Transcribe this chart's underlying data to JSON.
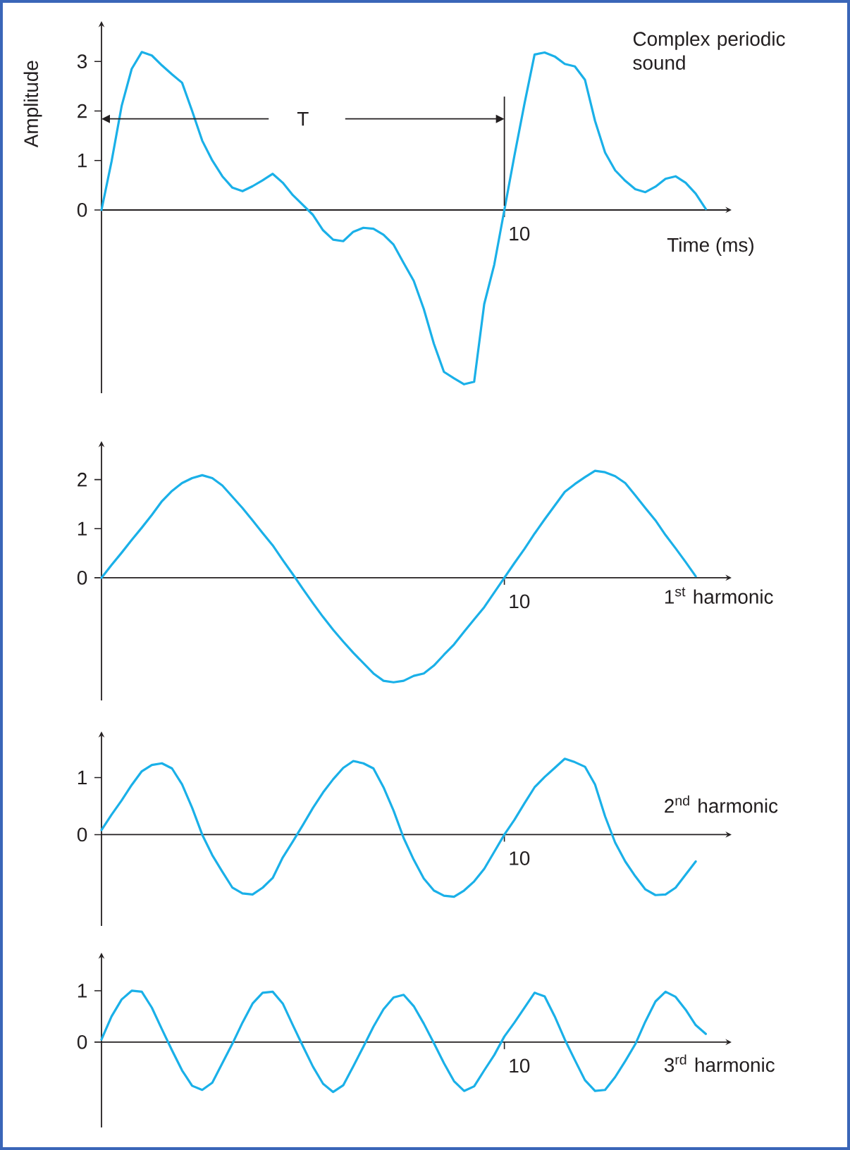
{
  "chart_data": [
    {
      "type": "line",
      "title": "Complex periodic sound",
      "xlabel": "Time (ms)",
      "ylabel": "Amplitude",
      "ylim": [
        -3.7,
        3.7
      ],
      "yticks": [
        0,
        1,
        2,
        3
      ],
      "annotations": [
        "10",
        "T"
      ],
      "categories": [
        null,
        null,
        null,
        null,
        null,
        null,
        null,
        null,
        null,
        null,
        null,
        null,
        null,
        null,
        null,
        null,
        null,
        null,
        null,
        null,
        null,
        null,
        null,
        null,
        null,
        null,
        null,
        null,
        null,
        null,
        null,
        null,
        null,
        null,
        null,
        null,
        null,
        null,
        null,
        null,
        null,
        null,
        null,
        null,
        null,
        null,
        null,
        null,
        null,
        null,
        null,
        null,
        null,
        null,
        null,
        null,
        null,
        null,
        null,
        null,
        null
      ],
      "series": [
        {
          "color": "#1ab0e8",
          "values": [
            0,
            0.98,
            2.1,
            2.85,
            3.19,
            3.12,
            2.92,
            2.74,
            2.57,
            2.0,
            1.4,
            1.0,
            0.68,
            0.45,
            0.38,
            0.48,
            0.6,
            0.73,
            0.55,
            0.3,
            0.1,
            -0.1,
            -0.41,
            -0.6,
            -0.63,
            -0.44,
            -0.36,
            -0.38,
            -0.5,
            -0.7,
            -1.07,
            -1.43,
            -2.0,
            -2.7,
            -3.27,
            -3.4,
            -3.52,
            -3.47,
            -1.9,
            -1.1,
            0,
            1.1,
            2.15,
            3.14,
            3.18,
            3.1,
            2.95,
            2.9,
            2.63,
            1.8,
            1.16,
            0.8,
            0.59,
            0.42,
            0.36,
            0.47,
            0.63,
            0.68,
            0.55,
            0.33,
            0.02
          ]
        }
      ]
    },
    {
      "type": "line",
      "title": "1$^{st}$ harmonic",
      "ylim": [
        -2.5,
        2.67
      ],
      "yticks": [
        0,
        1,
        2
      ],
      "annotations": [
        "10"
      ],
      "categories": [
        null,
        null,
        null,
        null,
        null,
        null,
        null,
        null,
        null,
        null,
        null,
        null,
        null,
        null,
        null,
        null,
        null,
        null,
        null,
        null,
        null,
        null,
        null,
        null,
        null,
        null,
        null,
        null,
        null,
        null,
        null,
        null,
        null,
        null,
        null,
        null,
        null,
        null,
        null,
        null,
        null,
        null,
        null,
        null,
        null,
        null,
        null,
        null,
        null,
        null,
        null,
        null,
        null,
        null,
        null,
        null,
        null,
        null,
        null,
        null
      ],
      "series": [
        {
          "color": "#1ab0e8",
          "values": [
            0,
            0.26,
            0.51,
            0.77,
            1.02,
            1.28,
            1.56,
            1.77,
            1.93,
            2.03,
            2.09,
            2.03,
            1.88,
            1.65,
            1.42,
            1.17,
            0.91,
            0.66,
            0.36,
            0.07,
            -0.23,
            -0.52,
            -0.8,
            -1.06,
            -1.3,
            -1.53,
            -1.74,
            -1.95,
            -2.1,
            -2.13,
            -2.1,
            -2.0,
            -1.95,
            -1.79,
            -1.57,
            -1.36,
            -1.1,
            -0.85,
            -0.6,
            -0.3,
            0,
            0.3,
            0.59,
            0.9,
            1.19,
            1.47,
            1.75,
            1.91,
            2.05,
            2.18,
            2.15,
            2.07,
            1.93,
            1.68,
            1.42,
            1.17,
            0.87,
            0.6,
            0.32,
            0.03
          ]
        }
      ]
    },
    {
      "type": "line",
      "title": "2$^{nd}$ harmonic",
      "ylim": [
        -1.6,
        1.71
      ],
      "yticks": [
        0,
        1
      ],
      "annotations": [
        "10"
      ],
      "categories": [
        null,
        null,
        null,
        null,
        null,
        null,
        null,
        null,
        null,
        null,
        null,
        null,
        null,
        null,
        null,
        null,
        null,
        null,
        null,
        null,
        null,
        null,
        null,
        null,
        null,
        null,
        null,
        null,
        null,
        null,
        null,
        null,
        null,
        null,
        null,
        null,
        null,
        null,
        null,
        null,
        null,
        null,
        null,
        null,
        null,
        null,
        null,
        null,
        null,
        null,
        null,
        null,
        null,
        null,
        null,
        null,
        null,
        null,
        null,
        null
      ],
      "series": [
        {
          "color": "#1ab0e8",
          "values": [
            0.08,
            0.35,
            0.6,
            0.87,
            1.11,
            1.22,
            1.25,
            1.16,
            0.88,
            0.47,
            0,
            -0.36,
            -0.65,
            -0.93,
            -1.03,
            -1.05,
            -0.93,
            -0.76,
            -0.4,
            -0.12,
            0.17,
            0.47,
            0.74,
            0.97,
            1.17,
            1.29,
            1.25,
            1.16,
            0.83,
            0.42,
            -0.06,
            -0.44,
            -0.77,
            -0.98,
            -1.07,
            -1.09,
            -0.98,
            -0.82,
            -0.6,
            -0.3,
            0,
            0.26,
            0.55,
            0.83,
            1.01,
            1.17,
            1.33,
            1.27,
            1.19,
            0.88,
            0.32,
            -0.14,
            -0.47,
            -0.73,
            -0.96,
            -1.06,
            -1.05,
            -0.93,
            -0.7,
            -0.47
          ]
        }
      ]
    },
    {
      "type": "line",
      "title": "3$^{rd}$ harmonic",
      "ylim": [
        -1.66,
        1.63
      ],
      "yticks": [
        0,
        1
      ],
      "annotations": [
        "10"
      ],
      "categories": [
        null,
        null,
        null,
        null,
        null,
        null,
        null,
        null,
        null,
        null,
        null,
        null,
        null,
        null,
        null,
        null,
        null,
        null,
        null,
        null,
        null,
        null,
        null,
        null,
        null,
        null,
        null,
        null,
        null,
        null,
        null,
        null,
        null,
        null,
        null,
        null,
        null,
        null,
        null,
        null,
        null,
        null,
        null,
        null,
        null,
        null,
        null,
        null,
        null,
        null,
        null,
        null,
        null,
        null,
        null,
        null,
        null,
        null,
        null,
        null,
        null
      ],
      "series": [
        {
          "color": "#1ab0e8",
          "values": [
            0.05,
            0.5,
            0.83,
            1.0,
            0.98,
            0.67,
            0.25,
            -0.16,
            -0.55,
            -0.85,
            -0.93,
            -0.79,
            -0.41,
            -0.03,
            0.38,
            0.75,
            0.96,
            0.98,
            0.75,
            0.33,
            -0.08,
            -0.48,
            -0.81,
            -0.97,
            -0.84,
            -0.47,
            -0.09,
            0.3,
            0.64,
            0.87,
            0.92,
            0.7,
            0.36,
            -0.02,
            -0.41,
            -0.76,
            -0.95,
            -0.86,
            -0.55,
            -0.25,
            0.11,
            0.38,
            0.67,
            0.96,
            0.89,
            0.5,
            0.05,
            -0.35,
            -0.74,
            -0.95,
            -0.93,
            -0.68,
            -0.37,
            -0.04,
            0.4,
            0.79,
            0.98,
            0.88,
            0.63,
            0.33,
            0.16
          ]
        }
      ]
    }
  ]
}
